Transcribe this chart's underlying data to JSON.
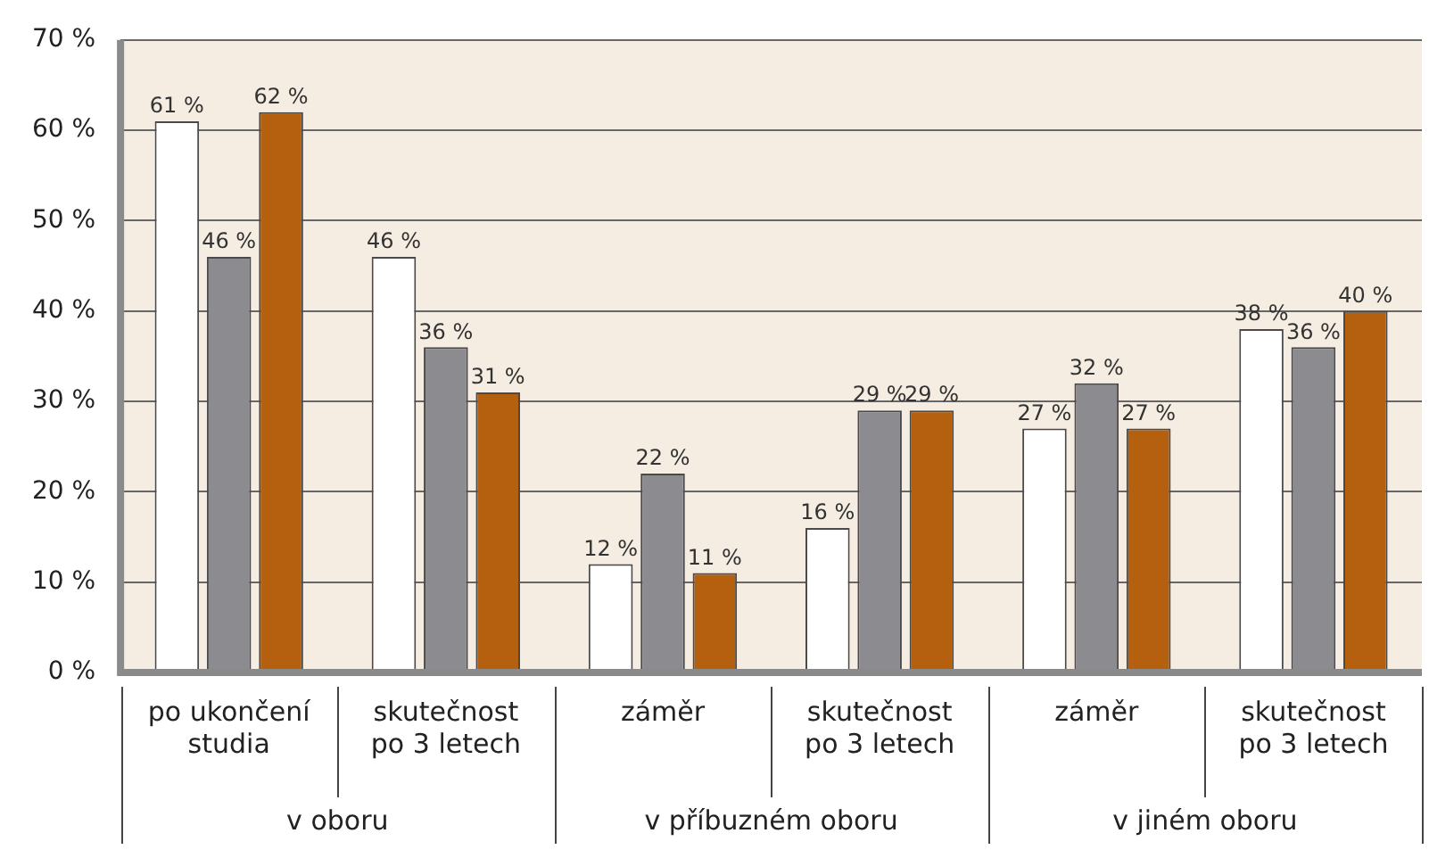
{
  "chart_data": {
    "type": "bar",
    "categories": [
      "po ukončení\nstudia",
      "skutečnost\npo 3 letech",
      "záměr",
      "skutečnost\npo 3 letech",
      "záměr",
      "skutečnost\npo 3 letech"
    ],
    "series": [
      {
        "color": "#ffffff",
        "values": [
          61,
          46,
          12,
          16,
          27,
          38
        ],
        "value_labels": [
          "61 %",
          "46 %",
          "12 %",
          "16 %",
          "27 %",
          "38 %"
        ]
      },
      {
        "color": "#8c8c90",
        "values": [
          46,
          36,
          22,
          29,
          32,
          36
        ],
        "value_labels": [
          "46 %",
          "36 %",
          "22 %",
          "29 %",
          "32 %",
          "36 %"
        ]
      },
      {
        "color": "#b4600f",
        "values": [
          62,
          31,
          11,
          29,
          27,
          40
        ],
        "value_labels": [
          "62 %",
          "31 %",
          "11 %",
          "29 %",
          "27 %",
          "40 %"
        ]
      }
    ],
    "annotations": [
      "v oboru",
      "v příbuzném oboru",
      "v jiném oboru"
    ],
    "ylim": [
      0,
      70
    ],
    "yticks": [
      {
        "value": 0,
        "label": "0 %"
      },
      {
        "value": 10,
        "label": "10 %"
      },
      {
        "value": 20,
        "label": "20 %"
      },
      {
        "value": 30,
        "label": "30 %"
      },
      {
        "value": 40,
        "label": "40 %"
      },
      {
        "value": 50,
        "label": "50 %"
      },
      {
        "value": 60,
        "label": "60 %"
      },
      {
        "value": 70,
        "label": "70 %"
      }
    ],
    "grid": "y",
    "legend": false
  }
}
